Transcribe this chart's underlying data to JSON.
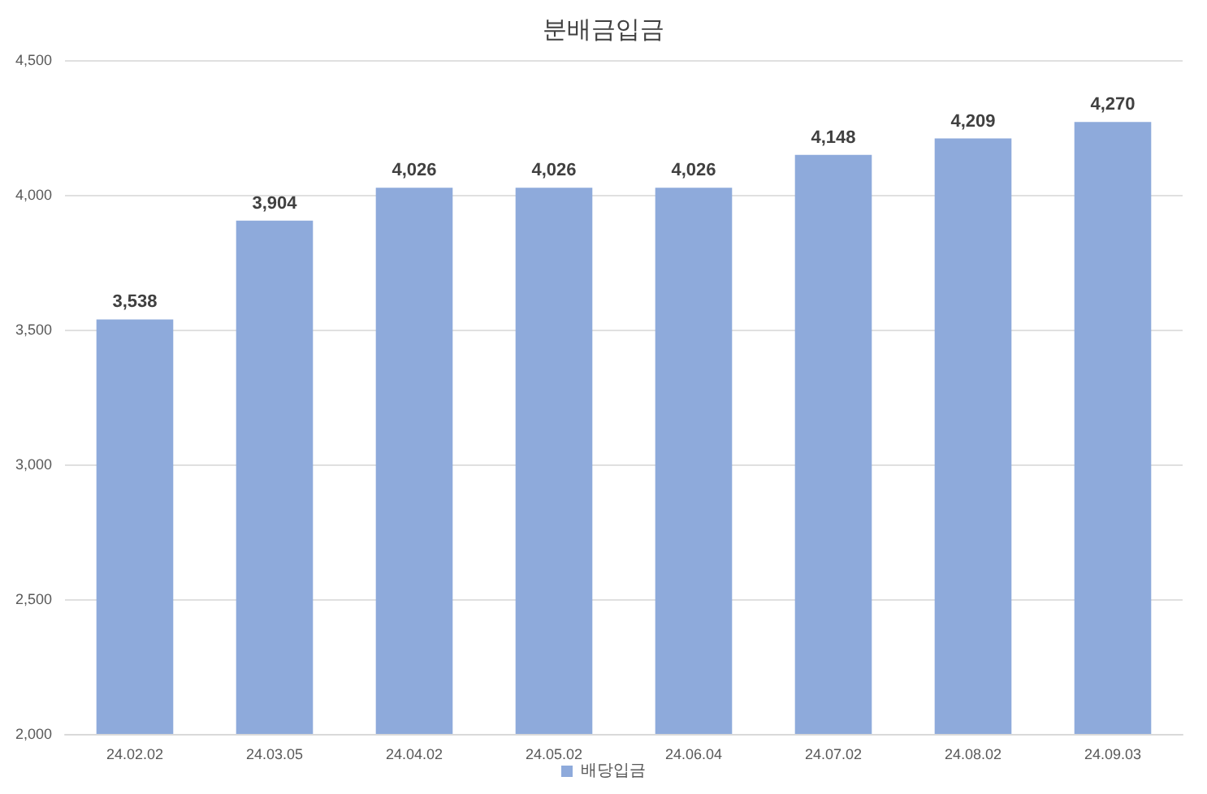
{
  "chart_data": {
    "type": "bar",
    "title": "분배금입금",
    "categories": [
      "24.02.02",
      "24.03.05",
      "24.04.02",
      "24.05.02",
      "24.06.04",
      "24.07.02",
      "24.08.02",
      "24.09.03"
    ],
    "series": [
      {
        "name": "배당입금",
        "color": "#8eaadb",
        "values": [
          3538,
          3904,
          4026,
          4026,
          4026,
          4148,
          4209,
          4270
        ],
        "value_labels": [
          "3,538",
          "3,904",
          "4,026",
          "4,026",
          "4,026",
          "4,148",
          "4,209",
          "4,270"
        ]
      }
    ],
    "ylim": [
      2000,
      4500
    ],
    "yticks": [
      {
        "value": 2000,
        "label": "2,000"
      },
      {
        "value": 2500,
        "label": "2,500"
      },
      {
        "value": 3000,
        "label": "3,000"
      },
      {
        "value": 3500,
        "label": "3,500"
      },
      {
        "value": 4000,
        "label": "4,000"
      },
      {
        "value": 4500,
        "label": "4,500"
      }
    ],
    "grid": "y",
    "legend": "bottom"
  }
}
